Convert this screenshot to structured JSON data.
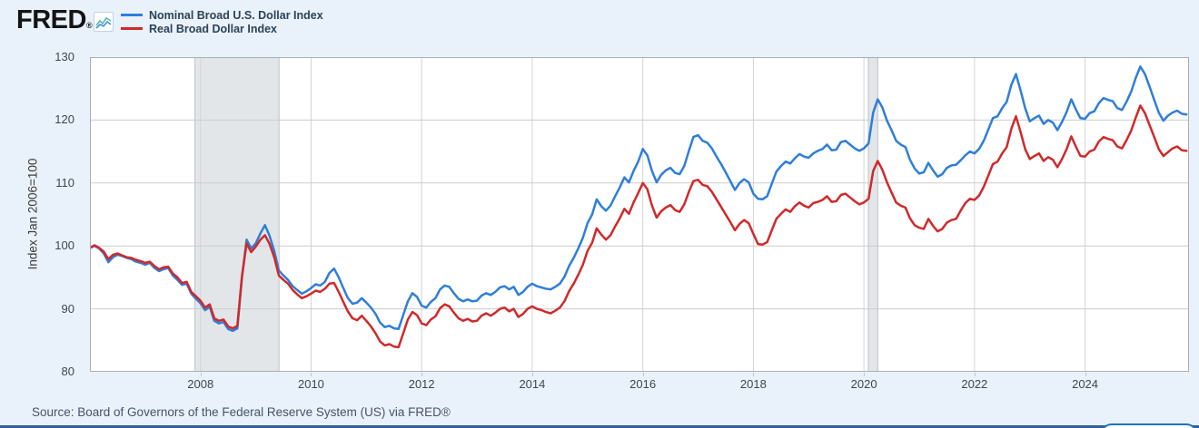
{
  "header": {
    "logo_text": "FRED",
    "logo_registered": "®",
    "logo_icon": "fred-sparkline-icon",
    "legend": [
      {
        "label": "Nominal Broad U.S. Dollar Index",
        "color": "#2f7ed8"
      },
      {
        "label": "Real Broad Dollar Index",
        "color": "#d0292a"
      }
    ]
  },
  "y_axis_title": "Index Jan 2006=100",
  "source_line": "Source: Board of Governors of the Federal Reserve System (US) via FRED®",
  "colors": {
    "page_background": "#e9f1fa",
    "plot_background": "#ffffff",
    "plot_border": "#a8aeb4",
    "gridline": "#cccccc",
    "recession_band": "#e3e6e8",
    "band_edge": "#bbc1c7",
    "nominal_line": "#2f7ed8",
    "real_line": "#d0292a",
    "footer_bar": "#30609a",
    "button_border": "#1e73be"
  },
  "chart_data": {
    "type": "line",
    "ylabel": "Index Jan 2006=100",
    "legend_position": "top-left",
    "grid": true,
    "x_start_year": 2006,
    "x_start_month": 1,
    "frequency": "monthly",
    "xlim": [
      2006.0,
      2025.88
    ],
    "ylim": [
      80,
      130
    ],
    "yticks": [
      80,
      90,
      100,
      110,
      120,
      130
    ],
    "xticks": [
      2008,
      2010,
      2012,
      2014,
      2016,
      2018,
      2020,
      2022,
      2024
    ],
    "recession_bands": [
      [
        2007.9,
        2009.42
      ],
      [
        2020.08,
        2020.25
      ]
    ],
    "series": [
      {
        "name": "Nominal Broad U.S. Dollar Index",
        "color": "#2f7ed8",
        "values": [
          99.7,
          100.0,
          99.6,
          98.8,
          97.4,
          98.2,
          98.6,
          98.4,
          98.1,
          97.9,
          97.5,
          97.3,
          97.0,
          97.3,
          96.5,
          96.0,
          96.3,
          96.5,
          95.3,
          94.6,
          93.8,
          94.0,
          92.4,
          91.6,
          90.9,
          89.8,
          90.3,
          88.1,
          87.7,
          87.9,
          86.8,
          86.5,
          86.9,
          95.0,
          101.0,
          99.6,
          100.4,
          102.0,
          103.3,
          101.6,
          99.2,
          96.1,
          95.3,
          94.6,
          93.6,
          93.0,
          92.4,
          92.8,
          93.3,
          93.9,
          93.7,
          94.3,
          95.7,
          96.4,
          95.0,
          93.3,
          91.7,
          90.8,
          91.0,
          91.7,
          91.0,
          90.2,
          89.2,
          87.8,
          87.1,
          87.3,
          86.9,
          86.8,
          89.0,
          91.2,
          92.5,
          91.9,
          90.5,
          90.2,
          91.1,
          91.7,
          93.1,
          93.7,
          93.5,
          92.5,
          91.6,
          91.2,
          91.5,
          91.2,
          91.3,
          92.1,
          92.5,
          92.2,
          92.7,
          93.4,
          93.6,
          93.1,
          93.5,
          92.2,
          92.7,
          93.5,
          94.0,
          93.6,
          93.4,
          93.2,
          93.1,
          93.5,
          94.0,
          95.1,
          96.8,
          98.1,
          99.6,
          101.3,
          103.6,
          105.0,
          107.4,
          106.3,
          105.6,
          106.4,
          107.9,
          109.3,
          110.9,
          110.1,
          111.9,
          113.4,
          115.4,
          114.4,
          111.9,
          110.1,
          111.3,
          112.0,
          112.4,
          111.6,
          111.4,
          112.7,
          115.1,
          117.3,
          117.6,
          116.7,
          116.4,
          115.5,
          114.2,
          113.0,
          111.7,
          110.3,
          108.9,
          110.0,
          110.6,
          110.1,
          108.3,
          107.5,
          107.4,
          107.9,
          109.9,
          111.8,
          112.7,
          113.4,
          113.1,
          113.9,
          114.6,
          114.2,
          114.0,
          114.7,
          115.1,
          115.4,
          116.1,
          115.2,
          115.3,
          116.5,
          116.7,
          116.1,
          115.5,
          115.1,
          115.5,
          116.3,
          121.2,
          123.3,
          122.0,
          119.9,
          118.4,
          116.7,
          116.1,
          115.7,
          113.7,
          112.3,
          111.5,
          111.7,
          113.2,
          112.0,
          111.0,
          111.4,
          112.4,
          112.8,
          112.9,
          113.6,
          114.4,
          115.0,
          114.7,
          115.4,
          116.7,
          118.5,
          120.3,
          120.6,
          121.9,
          122.9,
          125.6,
          127.3,
          124.7,
          121.9,
          119.8,
          120.3,
          120.7,
          119.4,
          120.0,
          119.6,
          118.4,
          119.7,
          121.3,
          123.3,
          121.7,
          120.3,
          120.2,
          121.1,
          121.4,
          122.7,
          123.5,
          123.2,
          123.0,
          121.9,
          121.6,
          122.9,
          124.5,
          126.7,
          128.5,
          127.3,
          125.3,
          123.2,
          121.2,
          119.9,
          120.7,
          121.2,
          121.5,
          121.0,
          120.9
        ]
      },
      {
        "name": "Real Broad Dollar Index",
        "color": "#d0292a",
        "values": [
          99.7,
          100.1,
          99.7,
          99.1,
          97.9,
          98.6,
          98.8,
          98.5,
          98.2,
          98.1,
          97.8,
          97.6,
          97.3,
          97.5,
          96.8,
          96.3,
          96.6,
          96.7,
          95.6,
          95.0,
          94.1,
          94.3,
          92.7,
          92.0,
          91.3,
          90.2,
          90.7,
          88.5,
          88.1,
          88.3,
          87.2,
          86.9,
          87.3,
          95.2,
          100.4,
          99.0,
          99.9,
          101.0,
          101.7,
          100.3,
          98.2,
          95.3,
          94.6,
          94.0,
          93.0,
          92.3,
          91.7,
          92.0,
          92.4,
          92.9,
          92.7,
          93.2,
          94.0,
          94.1,
          92.7,
          91.1,
          89.6,
          88.5,
          88.2,
          88.9,
          88.1,
          87.2,
          86.1,
          84.8,
          84.2,
          84.4,
          84.0,
          83.9,
          86.1,
          88.3,
          89.5,
          89.0,
          87.7,
          87.4,
          88.3,
          88.8,
          90.1,
          90.7,
          90.4,
          89.4,
          88.5,
          88.1,
          88.4,
          88.0,
          88.1,
          88.9,
          89.3,
          88.9,
          89.4,
          90.0,
          90.2,
          89.6,
          90.0,
          88.7,
          89.2,
          90.0,
          90.4,
          90.0,
          89.8,
          89.5,
          89.3,
          89.7,
          90.2,
          91.2,
          92.8,
          94.0,
          95.4,
          97.0,
          99.2,
          100.5,
          102.8,
          101.8,
          101.0,
          101.7,
          103.1,
          104.4,
          105.9,
          105.1,
          106.9,
          108.4,
          110.0,
          109.0,
          106.4,
          104.5,
          105.5,
          106.1,
          106.5,
          105.7,
          105.4,
          106.6,
          108.6,
          110.3,
          110.5,
          109.7,
          109.5,
          108.6,
          107.4,
          106.2,
          105.0,
          103.8,
          102.5,
          103.5,
          104.1,
          103.6,
          101.9,
          100.3,
          100.2,
          100.6,
          102.5,
          104.3,
          105.1,
          105.8,
          105.4,
          106.3,
          106.9,
          106.4,
          106.1,
          106.8,
          107.0,
          107.3,
          107.9,
          107.0,
          107.1,
          108.1,
          108.3,
          107.7,
          107.1,
          106.6,
          106.9,
          107.5,
          111.9,
          113.5,
          112.1,
          110.1,
          108.5,
          106.9,
          106.4,
          106.1,
          104.4,
          103.3,
          102.9,
          102.7,
          104.3,
          103.2,
          102.3,
          102.7,
          103.7,
          104.1,
          104.3,
          105.6,
          106.8,
          107.5,
          107.3,
          108.0,
          109.4,
          111.2,
          113.0,
          113.4,
          114.7,
          115.7,
          118.6,
          120.6,
          118.1,
          115.4,
          113.8,
          114.3,
          114.7,
          113.5,
          114.1,
          113.7,
          112.5,
          113.8,
          115.4,
          117.4,
          115.8,
          114.3,
          114.2,
          115.0,
          115.3,
          116.6,
          117.3,
          117.0,
          116.8,
          115.8,
          115.5,
          116.8,
          118.3,
          120.4,
          122.3,
          121.1,
          119.2,
          117.3,
          115.4,
          114.3,
          114.9,
          115.5,
          115.8,
          115.2,
          115.1
        ]
      }
    ]
  }
}
